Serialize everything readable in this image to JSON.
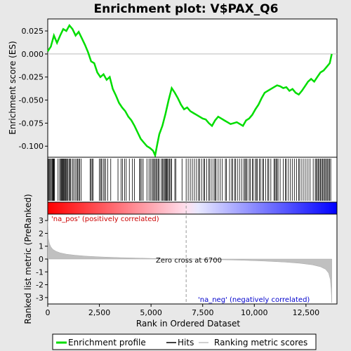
{
  "chart_data": {
    "type": "line",
    "title": "Enrichment plot: V$PAX_Q6",
    "top_panel": {
      "ylabel": "Enrichment score (ES)",
      "ylim": [
        -0.112,
        0.038
      ],
      "yticks": [
        0.025,
        0.0,
        -0.025,
        -0.05,
        -0.075,
        -0.1
      ],
      "ytick_labels": [
        "0.025",
        "0.000",
        "-0.025",
        "-0.050",
        "-0.075",
        "-0.100"
      ],
      "series": [
        {
          "name": "Enrichment profile",
          "color": "#00dd00",
          "x": [
            0,
            150,
            300,
            450,
            600,
            750,
            900,
            1050,
            1200,
            1350,
            1500,
            1650,
            1800,
            1950,
            2100,
            2250,
            2400,
            2550,
            2700,
            2850,
            3000,
            3150,
            3300,
            3450,
            3600,
            3750,
            3900,
            4050,
            4200,
            4350,
            4500,
            4650,
            4800,
            4950,
            5100,
            5200,
            5300,
            5400,
            5550,
            5700,
            5850,
            6000,
            6150,
            6300,
            6450,
            6600,
            6750,
            6900,
            7050,
            7200,
            7350,
            7500,
            7650,
            7800,
            7950,
            8100,
            8250,
            8400,
            8550,
            8700,
            8850,
            9000,
            9150,
            9300,
            9450,
            9600,
            9750,
            9900,
            10050,
            10200,
            10350,
            10500,
            10650,
            10800,
            10950,
            11100,
            11250,
            11400,
            11550,
            11700,
            11850,
            12000,
            12150,
            12300,
            12450,
            12600,
            12750,
            12900,
            13050,
            13200,
            13350,
            13500,
            13650,
            13750
          ],
          "y": [
            0.003,
            0.008,
            0.02,
            0.012,
            0.02,
            0.027,
            0.025,
            0.031,
            0.027,
            0.02,
            0.024,
            0.017,
            0.01,
            0.002,
            -0.008,
            -0.01,
            -0.02,
            -0.025,
            -0.022,
            -0.028,
            -0.025,
            -0.038,
            -0.045,
            -0.053,
            -0.058,
            -0.062,
            -0.068,
            -0.072,
            -0.078,
            -0.085,
            -0.092,
            -0.096,
            -0.1,
            -0.102,
            -0.105,
            -0.11,
            -0.098,
            -0.087,
            -0.078,
            -0.065,
            -0.05,
            -0.037,
            -0.042,
            -0.048,
            -0.055,
            -0.06,
            -0.058,
            -0.062,
            -0.064,
            -0.066,
            -0.068,
            -0.07,
            -0.071,
            -0.075,
            -0.078,
            -0.072,
            -0.068,
            -0.07,
            -0.072,
            -0.074,
            -0.076,
            -0.075,
            -0.074,
            -0.076,
            -0.078,
            -0.072,
            -0.07,
            -0.066,
            -0.06,
            -0.055,
            -0.048,
            -0.042,
            -0.04,
            -0.038,
            -0.036,
            -0.034,
            -0.035,
            -0.037,
            -0.036,
            -0.04,
            -0.038,
            -0.042,
            -0.044,
            -0.04,
            -0.035,
            -0.03,
            -0.027,
            -0.03,
            -0.025,
            -0.02,
            -0.018,
            -0.014,
            -0.01,
            0.0
          ]
        }
      ]
    },
    "hits_panel": {
      "legend_label": "Hits",
      "hit_positions": [
        20,
        60,
        100,
        130,
        180,
        220,
        250,
        280,
        300,
        330,
        500,
        580,
        620,
        660,
        700,
        730,
        760,
        790,
        830,
        860,
        900,
        950,
        980,
        1050,
        1080,
        1120,
        1200,
        1260,
        1330,
        1400,
        1450,
        1500,
        1550,
        1620,
        2050,
        2100,
        2150,
        2200,
        2500,
        2560,
        2600,
        2680,
        2740,
        2800,
        2900,
        3050,
        3400,
        3550,
        3620,
        3720,
        3800,
        3950,
        4100,
        4200,
        4450,
        4480,
        4550,
        4620,
        4800,
        4900,
        4970,
        5050,
        5100,
        5150,
        5200,
        5250,
        5300,
        5350,
        5400,
        5500,
        5550,
        5600,
        5650,
        5700,
        5720,
        5760,
        5800,
        5850,
        5900,
        5950,
        6000,
        6150,
        6200,
        6500,
        6700,
        6800,
        6900,
        7000,
        7100,
        7200,
        7300,
        7350,
        7450,
        7550,
        7600,
        7700,
        7800,
        7850,
        7950,
        8050,
        8100,
        8150,
        8250,
        8350,
        8450,
        8600,
        8650,
        8800,
        8900,
        8950,
        9050,
        9100,
        9200,
        9300,
        9400,
        9500,
        9550,
        9600,
        9650,
        9750,
        9800,
        9900,
        9950,
        10050,
        10100,
        10150,
        10250,
        10300,
        10400,
        10450,
        10550,
        10650,
        10700,
        10800,
        10950,
        11000,
        11050,
        11100,
        11150,
        11250,
        11400,
        11500,
        11550,
        11650,
        11750,
        11850,
        11950,
        12050,
        12150,
        12200,
        12300,
        12400,
        12500,
        12600,
        12700,
        12850,
        12950,
        13000,
        13050,
        13100,
        13150,
        13200,
        13250,
        13300,
        13350,
        13400,
        13450,
        13500,
        13550,
        13600,
        13650,
        13700
      ]
    },
    "metric_panel": {
      "ylabel": "Ranked list metric (PreRanked)",
      "xlabel": "Rank in Ordered Dataset",
      "xlim": [
        0,
        14000
      ],
      "xticks": [
        0,
        2500,
        5000,
        7500,
        10000,
        12500
      ],
      "xtick_labels": [
        "0",
        "2,500",
        "5,000",
        "7,500",
        "10,000",
        "12,500"
      ],
      "ylim": [
        -3.5,
        3.5
      ],
      "yticks": [
        3,
        2,
        1,
        0,
        -1,
        -2,
        -3
      ],
      "ytick_labels": [
        "3",
        "2",
        "1",
        "0",
        "-1",
        "-2",
        "-3"
      ],
      "legend_label": "Ranking metric scores",
      "zero_cross_label": "Zero cross at 6700",
      "zero_cross": 6700,
      "n_total": 13750,
      "pos_label": "'na_pos' (positively correlated)",
      "neg_label": "'na_neg' (negatively correlated)",
      "pos_color": "#cc0000",
      "neg_color": "#0000cc",
      "metric_profile": {
        "x": [
          0,
          30,
          80,
          150,
          250,
          400,
          600,
          900,
          1300,
          1800,
          2500,
          3500,
          4500,
          5500,
          6700,
          8000,
          9500,
          10500,
          11500,
          12200,
          12800,
          13200,
          13450,
          13600,
          13680,
          13720,
          13750
        ],
        "y": [
          3.0,
          1.6,
          1.2,
          0.95,
          0.75,
          0.6,
          0.48,
          0.38,
          0.3,
          0.23,
          0.17,
          0.11,
          0.07,
          0.03,
          0.0,
          -0.04,
          -0.1,
          -0.16,
          -0.24,
          -0.33,
          -0.45,
          -0.6,
          -0.8,
          -1.1,
          -1.6,
          -2.4,
          -3.4
        ]
      }
    },
    "legend": [
      "Enrichment profile",
      "Hits",
      "Ranking metric scores"
    ]
  }
}
